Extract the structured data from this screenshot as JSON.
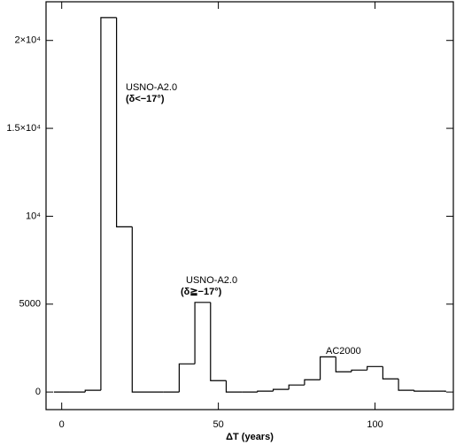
{
  "chart_data": {
    "type": "histogram",
    "x_label": "ΔT (years)",
    "bins": [
      -2.5,
      2.5,
      7.5,
      12.5,
      17.5,
      22.5,
      27.5,
      32.5,
      37.5,
      42.5,
      47.5,
      52.5,
      57.5,
      62.5,
      67.5,
      72.5,
      77.5,
      82.5,
      87.5,
      92.5,
      97.5,
      102.5,
      107.5,
      112.5,
      117.5,
      122.5
    ],
    "values": [
      0,
      0,
      100,
      21300,
      9400,
      0,
      0,
      0,
      1600,
      5100,
      650,
      0,
      0,
      50,
      150,
      400,
      700,
      2000,
      1150,
      1250,
      1450,
      750,
      100,
      50,
      50
    ],
    "color": "#000000",
    "xlim": [
      -5,
      125
    ],
    "xticks": [
      0,
      50,
      100
    ],
    "ylim": [
      -1000,
      22200
    ],
    "yticks": [
      0,
      5000,
      {
        "value": 10000,
        "label": "10⁴"
      },
      {
        "value": 15000,
        "label": "1.5×10⁴"
      },
      {
        "value": 20000,
        "label": "2×10⁴"
      }
    ],
    "annotations": [
      "USNO-A2.0",
      "(δ<−17°)",
      "USNO-A2.0",
      "(δ≧−17°)",
      "AC2000"
    ]
  }
}
